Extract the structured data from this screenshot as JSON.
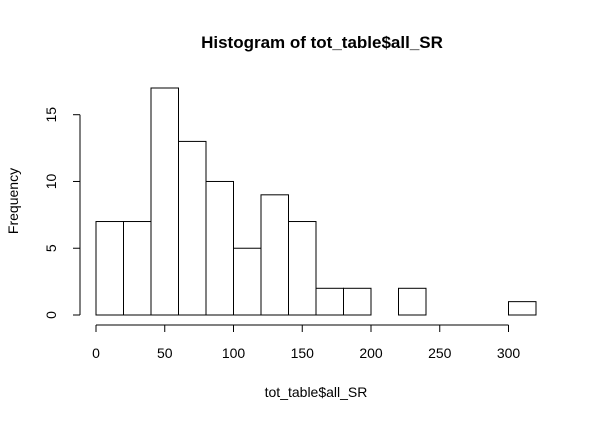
{
  "chart_data": {
    "type": "bar",
    "title": "Histogram of tot_table$all_SR",
    "xlabel": "tot_table$all_SR",
    "ylabel": "Frequency",
    "bins": [
      {
        "start": 0,
        "end": 20,
        "count": 7
      },
      {
        "start": 20,
        "end": 40,
        "count": 7
      },
      {
        "start": 40,
        "end": 60,
        "count": 17
      },
      {
        "start": 60,
        "end": 80,
        "count": 13
      },
      {
        "start": 80,
        "end": 100,
        "count": 10
      },
      {
        "start": 100,
        "end": 120,
        "count": 5
      },
      {
        "start": 120,
        "end": 140,
        "count": 9
      },
      {
        "start": 140,
        "end": 160,
        "count": 7
      },
      {
        "start": 160,
        "end": 180,
        "count": 2
      },
      {
        "start": 180,
        "end": 200,
        "count": 2
      },
      {
        "start": 200,
        "end": 220,
        "count": 0
      },
      {
        "start": 220,
        "end": 240,
        "count": 2
      },
      {
        "start": 240,
        "end": 260,
        "count": 0
      },
      {
        "start": 260,
        "end": 280,
        "count": 0
      },
      {
        "start": 280,
        "end": 300,
        "count": 0
      },
      {
        "start": 300,
        "end": 320,
        "count": 1
      }
    ],
    "xlim": [
      0,
      320
    ],
    "ylim": [
      0,
      17
    ],
    "x_ticks": [
      0,
      50,
      100,
      150,
      200,
      250,
      300
    ],
    "y_ticks": [
      0,
      5,
      10,
      15
    ],
    "grid": false,
    "bar_fill": "#ffffff",
    "bar_stroke": "#000000"
  }
}
